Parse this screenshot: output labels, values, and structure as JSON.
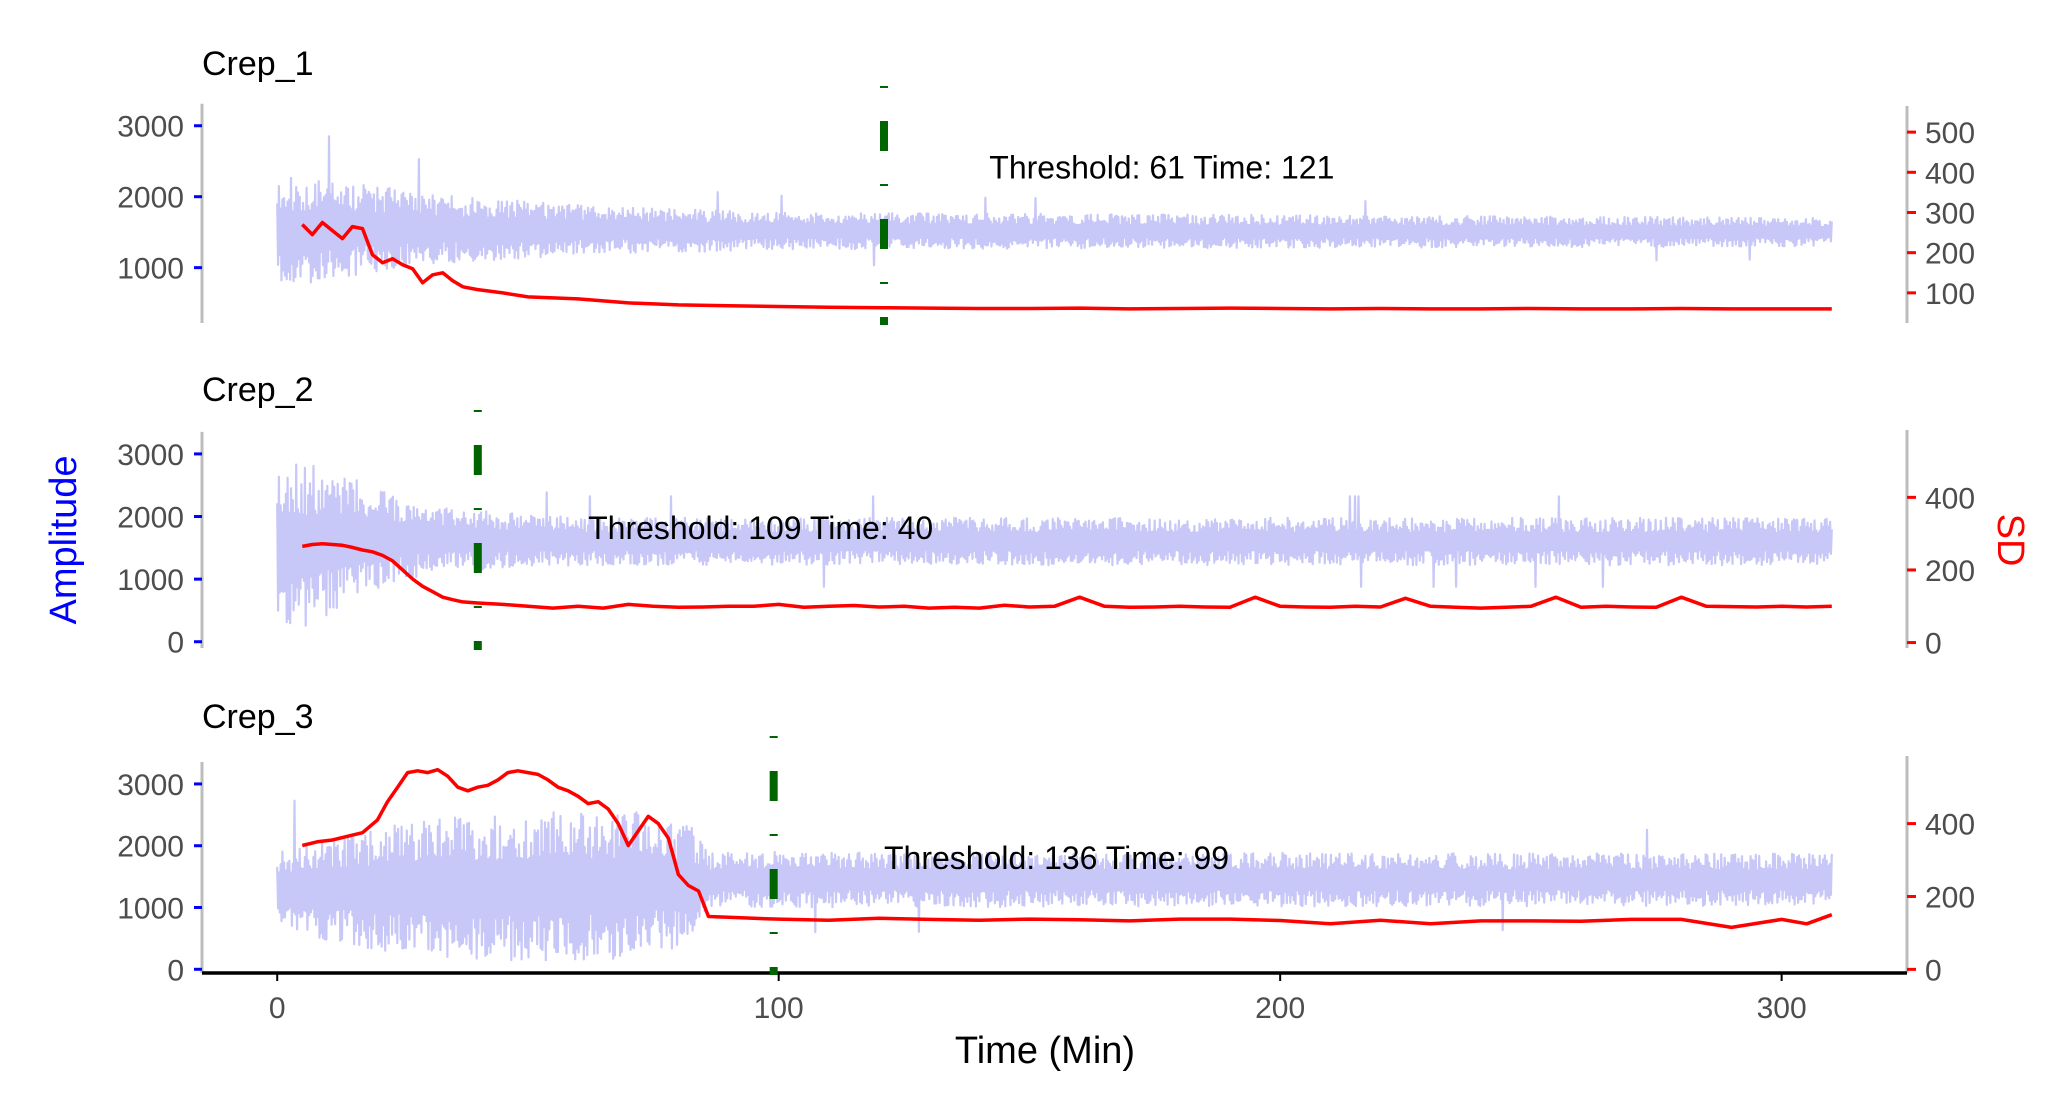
{
  "chart_data": {
    "type": "line",
    "xlabel": "Time (Min)",
    "ylabel_left": "Amplitude",
    "ylabel_right": "SD",
    "xlim": [
      -15,
      325
    ],
    "xticks": [
      0,
      100,
      200,
      300
    ],
    "colors": {
      "amplitude": "#c8c8f8",
      "sd": "#ff0000",
      "threshold_line": "#006400",
      "left_axis_ticks": "#0000ff",
      "right_axis_ticks": "#ff0000",
      "left_axis_title": "#0000ff",
      "right_axis_title": "#ff0000"
    },
    "panels": [
      {
        "title": "Crep_1",
        "left_ylim": [
          220,
          3250
        ],
        "left_ticks": [
          1000,
          2000,
          3000
        ],
        "right_ylim": [
          25,
          560
        ],
        "right_ticks": [
          100,
          200,
          300,
          400,
          500
        ],
        "threshold_time": 121,
        "annotation": "Threshold: 61 Time: 121",
        "annotation_x": 142,
        "sd_series": {
          "x": [
            5,
            7,
            9,
            11,
            13,
            15,
            17,
            19,
            21,
            23,
            25,
            27,
            29,
            31,
            33,
            35,
            37,
            40,
            45,
            50,
            60,
            70,
            80,
            90,
            100,
            110,
            121,
            130,
            140,
            150,
            160,
            170,
            180,
            190,
            200,
            210,
            220,
            230,
            240,
            250,
            260,
            270,
            280,
            290,
            300,
            310
          ],
          "y": [
            270,
            245,
            275,
            255,
            235,
            265,
            260,
            195,
            175,
            185,
            170,
            160,
            125,
            145,
            150,
            130,
            115,
            108,
            100,
            90,
            85,
            75,
            70,
            68,
            66,
            64,
            63,
            62,
            61,
            61,
            62,
            60,
            61,
            62,
            61,
            60,
            61,
            60,
            60,
            61,
            60,
            60,
            61,
            60,
            60,
            60
          ]
        },
        "amplitude_center": [
          [
            0,
            1500
          ],
          [
            20,
            1550
          ],
          [
            80,
            1520
          ],
          [
            310,
            1500
          ]
        ],
        "amplitude_halfwidth": [
          [
            0,
            800
          ],
          [
            10,
            700
          ],
          [
            30,
            500
          ],
          [
            60,
            350
          ],
          [
            100,
            260
          ],
          [
            310,
            200
          ]
        ],
        "amplitude_seed": 11
      },
      {
        "title": "Crep_2",
        "left_ylim": [
          -100,
          3350
        ],
        "left_ticks": [
          0,
          1000,
          2000,
          3000
        ],
        "right_ylim": [
          -15,
          580
        ],
        "right_ticks": [
          0,
          200,
          400
        ],
        "threshold_time": 40,
        "annotation": "Threshold: 109 Time: 40",
        "annotation_x": 62,
        "sd_series": {
          "x": [
            5,
            7,
            9,
            11,
            13,
            15,
            17,
            19,
            21,
            23,
            25,
            27,
            29,
            31,
            33,
            35,
            37,
            40,
            45,
            50,
            55,
            60,
            65,
            70,
            75,
            80,
            85,
            90,
            95,
            100,
            105,
            110,
            115,
            120,
            125,
            130,
            135,
            140,
            145,
            150,
            155,
            160,
            165,
            170,
            175,
            180,
            185,
            190,
            195,
            200,
            205,
            210,
            215,
            220,
            225,
            230,
            235,
            240,
            245,
            250,
            255,
            260,
            265,
            270,
            275,
            280,
            285,
            290,
            295,
            300,
            305,
            310
          ],
          "y": [
            265,
            270,
            272,
            270,
            268,
            262,
            255,
            250,
            240,
            225,
            200,
            175,
            155,
            140,
            125,
            118,
            112,
            109,
            105,
            100,
            95,
            100,
            95,
            105,
            100,
            97,
            98,
            100,
            100,
            105,
            97,
            100,
            102,
            98,
            100,
            95,
            97,
            95,
            103,
            98,
            100,
            125,
            100,
            97,
            98,
            100,
            98,
            97,
            125,
            100,
            98,
            97,
            100,
            98,
            122,
            100,
            97,
            95,
            97,
            100,
            125,
            97,
            100,
            98,
            97,
            125,
            100,
            99,
            98,
            100,
            98,
            100
          ]
        },
        "amplitude_center": [
          [
            0,
            1500
          ],
          [
            20,
            1650
          ],
          [
            60,
            1600
          ],
          [
            310,
            1600
          ]
        ],
        "amplitude_halfwidth": [
          [
            0,
            1400
          ],
          [
            10,
            1200
          ],
          [
            20,
            800
          ],
          [
            35,
            500
          ],
          [
            60,
            380
          ],
          [
            310,
            380
          ]
        ],
        "amplitude_seed": 23
      },
      {
        "title": "Crep_3",
        "left_ylim": [
          -60,
          3420
        ],
        "left_ticks": [
          0,
          1000,
          2000,
          3000
        ],
        "right_ylim": [
          -10,
          580
        ],
        "right_ticks": [
          0,
          200,
          400
        ],
        "threshold_time": 99,
        "annotation": "Threshold: 136 Time: 99",
        "annotation_x": 121,
        "sd_series": {
          "x": [
            5,
            8,
            11,
            14,
            17,
            20,
            22,
            24,
            26,
            28,
            30,
            32,
            34,
            36,
            38,
            40,
            42,
            44,
            46,
            48,
            50,
            52,
            54,
            56,
            58,
            60,
            62,
            64,
            66,
            68,
            70,
            72,
            74,
            76,
            78,
            80,
            82,
            84,
            86,
            90,
            95,
            100,
            110,
            120,
            130,
            140,
            150,
            160,
            170,
            180,
            190,
            200,
            210,
            220,
            230,
            240,
            250,
            260,
            270,
            280,
            290,
            300,
            305,
            310
          ],
          "y": [
            340,
            350,
            355,
            365,
            375,
            410,
            460,
            500,
            540,
            545,
            540,
            548,
            530,
            500,
            490,
            500,
            505,
            520,
            540,
            545,
            540,
            535,
            520,
            500,
            490,
            475,
            455,
            460,
            440,
            400,
            340,
            380,
            420,
            400,
            360,
            260,
            230,
            215,
            145,
            143,
            140,
            138,
            135,
            140,
            137,
            135,
            138,
            136,
            133,
            138,
            138,
            134,
            125,
            135,
            125,
            133,
            133,
            132,
            137,
            137,
            115,
            137,
            125,
            150
          ]
        },
        "amplitude_center": [
          [
            0,
            1300
          ],
          [
            20,
            1300
          ],
          [
            60,
            1350
          ],
          [
            84,
            1400
          ],
          [
            88,
            1450
          ],
          [
            310,
            1450
          ]
        ],
        "amplitude_halfwidth": [
          [
            0,
            700
          ],
          [
            20,
            1000
          ],
          [
            40,
            1200
          ],
          [
            70,
            1200
          ],
          [
            82,
            1000
          ],
          [
            86,
            450
          ],
          [
            310,
            420
          ]
        ],
        "amplitude_seed": 37
      }
    ]
  }
}
